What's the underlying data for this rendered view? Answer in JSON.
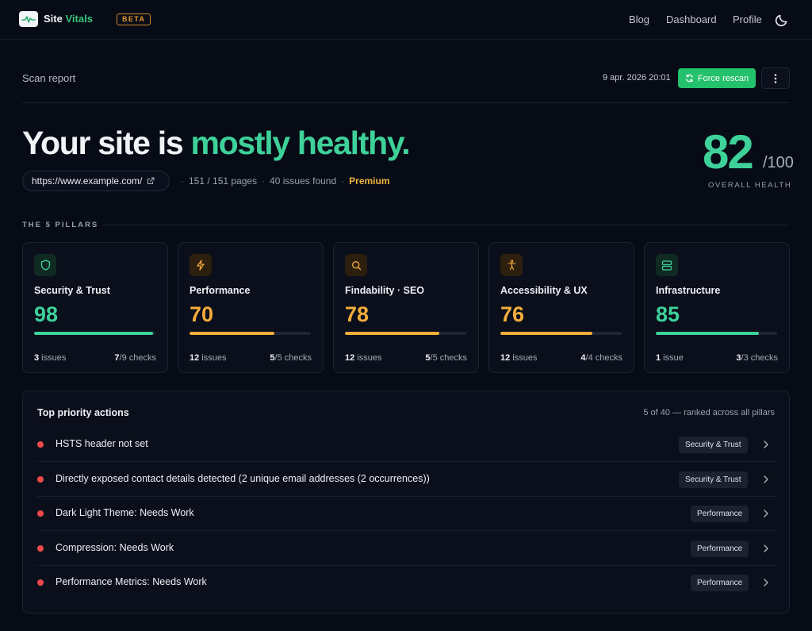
{
  "nav": {
    "brand_main": "Site",
    "brand_accent": "Vitals",
    "beta": "BETA",
    "links": [
      "Blog",
      "Dashboard",
      "Profile"
    ],
    "theme_icon": "moon-icon"
  },
  "report": {
    "title": "Scan report",
    "date": "9 apr. 2026 20:01",
    "rescan_label": "Force rescan"
  },
  "hero": {
    "title_main": "Your site is ",
    "title_accent": "mostly healthy.",
    "url": "https://www.example.com/",
    "pages": "151 / 151 pages",
    "issues": "40 issues found",
    "tier": "Premium",
    "score": "82",
    "score_denominator": "/100",
    "score_label": "OVERALL HEALTH"
  },
  "pillars": {
    "heading": "THE 5 PILLARS",
    "items": [
      {
        "name": "Security & Trust",
        "score": "98",
        "issues_count": "3",
        "issues_label": " issues",
        "checks_passed": "7",
        "checks_total": "/9 checks",
        "icon": "shield-icon",
        "color": "#3ed19a"
      },
      {
        "name": "Performance",
        "score": "70",
        "issues_count": "12",
        "issues_label": " issues",
        "checks_passed": "5",
        "checks_total": "/5 checks",
        "icon": "bolt-icon",
        "color": "#f5ad3a"
      },
      {
        "name": "Findability · SEO",
        "score": "78",
        "issues_count": "12",
        "issues_label": " issues",
        "checks_passed": "5",
        "checks_total": "/5 checks",
        "icon": "search-icon",
        "color": "#f5ad3a"
      },
      {
        "name": "Accessibility & UX",
        "score": "76",
        "issues_count": "12",
        "issues_label": " issues",
        "checks_passed": "4",
        "checks_total": "/4 checks",
        "icon": "accessibility-icon",
        "color": "#f5ad3a"
      },
      {
        "name": "Infrastructure",
        "score": "85",
        "issues_count": "1",
        "issues_label": " issue",
        "checks_passed": "3",
        "checks_total": "/3 checks",
        "icon": "server-icon",
        "color": "#3ed19a"
      }
    ]
  },
  "actions": {
    "title": "Top priority actions",
    "subtitle": "5 of 40 — ranked across all pillars",
    "items": [
      {
        "text": "HSTS header not set",
        "tag": "Security & Trust"
      },
      {
        "text": "Directly exposed contact details detected (2 unique email addresses (2 occurrences))",
        "tag": "Security & Trust"
      },
      {
        "text": "Dark Light Theme: Needs Work",
        "tag": "Performance"
      },
      {
        "text": "Compression: Needs Work",
        "tag": "Performance"
      },
      {
        "text": "Performance Metrics: Needs Work",
        "tag": "Performance"
      }
    ]
  }
}
